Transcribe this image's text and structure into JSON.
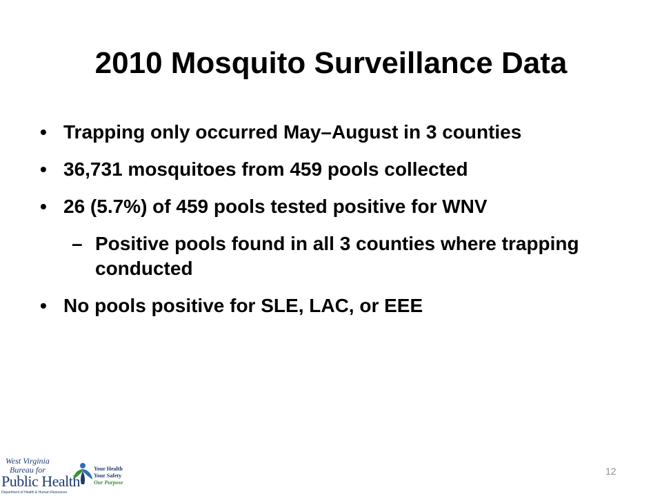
{
  "slide": {
    "title": "2010 Mosquito Surveillance Data",
    "bullets": [
      "Trapping only occurred May–August in 3 counties",
      "36,731 mosquitoes from 459 pools collected",
      "26 (5.7%) of 459 pools tested positive for WNV"
    ],
    "sub_bullet": "Positive pools found in all 3 counties where trapping conducted",
    "last_bullet": "No pools positive for SLE, LAC, or EEE",
    "bullet_mark": "•",
    "sub_bullet_mark": "–",
    "page_number": "12"
  },
  "logo": {
    "line1": "West Virginia",
    "line2": "Bureau for",
    "line3": "Public Health",
    "line4": "Department of Health & Human Resources",
    "tag1": "Your Health",
    "tag2": "Your Safety",
    "tag3": "Our Purpose",
    "colors": {
      "navy": "#1f3a6e",
      "green": "#3a8f3a",
      "blue": "#2f6fb6"
    }
  }
}
